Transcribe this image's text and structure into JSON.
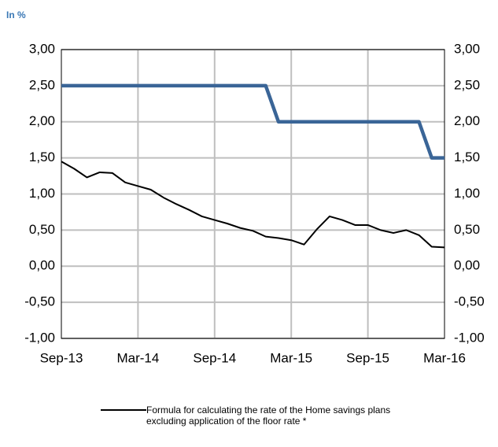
{
  "chart_data": {
    "type": "line",
    "unit_label": "In %",
    "categories": [
      "Sep-13",
      null,
      null,
      null,
      null,
      null,
      "Mar-14",
      null,
      null,
      null,
      null,
      null,
      "Sep-14",
      null,
      null,
      null,
      null,
      null,
      "Mar-15",
      null,
      null,
      null,
      null,
      null,
      "Sep-15",
      null,
      null,
      null,
      null,
      null,
      "Mar-16"
    ],
    "series": [
      {
        "color": "#3a6597",
        "values": [
          2.5,
          2.5,
          2.5,
          2.5,
          2.5,
          2.5,
          2.5,
          2.5,
          2.5,
          2.5,
          2.5,
          2.5,
          2.5,
          2.5,
          2.5,
          2.5,
          2.5,
          2.0,
          2.0,
          2.0,
          2.0,
          2.0,
          2.0,
          2.0,
          2.0,
          2.0,
          2.0,
          2.0,
          2.0,
          1.5,
          1.5
        ]
      },
      {
        "name": "Formula for calculating the rate of the Home savings plans excluding application of the floor rate *",
        "color": "#000000",
        "values": [
          1.45,
          1.35,
          1.23,
          1.3,
          1.29,
          1.16,
          1.11,
          1.06,
          0.95,
          0.86,
          0.78,
          0.69,
          0.64,
          0.59,
          0.53,
          0.49,
          0.41,
          0.39,
          0.36,
          0.3,
          0.51,
          0.69,
          0.64,
          0.57,
          0.57,
          0.5,
          0.46,
          0.5,
          0.43,
          0.27,
          0.26
        ]
      }
    ],
    "ylim": [
      -1,
      3
    ],
    "yticks": [
      {
        "value": 3,
        "label": "3,00"
      },
      {
        "value": 2.5,
        "label": "2,50"
      },
      {
        "value": 2,
        "label": "2,00"
      },
      {
        "value": 1.5,
        "label": "1,50"
      },
      {
        "value": 1,
        "label": "1,00"
      },
      {
        "value": 0.5,
        "label": "0,50"
      },
      {
        "value": 0,
        "label": "0,00"
      },
      {
        "value": -0.5,
        "label": "-0,50"
      },
      {
        "value": -1,
        "label": "-1,00"
      }
    ],
    "y2lim": [
      -1,
      3
    ],
    "y2ticks": [
      {
        "value": 3,
        "label": "3,00"
      },
      {
        "value": 2.5,
        "label": "2,50"
      },
      {
        "value": 2,
        "label": "2,00"
      },
      {
        "value": 1.5,
        "label": "1,50"
      },
      {
        "value": 1,
        "label": "1,00"
      },
      {
        "value": 0.5,
        "label": "0,50"
      },
      {
        "value": 0,
        "label": "0,00"
      },
      {
        "value": -0.5,
        "label": "-0,50"
      },
      {
        "value": -1,
        "label": "-1,00"
      }
    ],
    "grid": true
  }
}
